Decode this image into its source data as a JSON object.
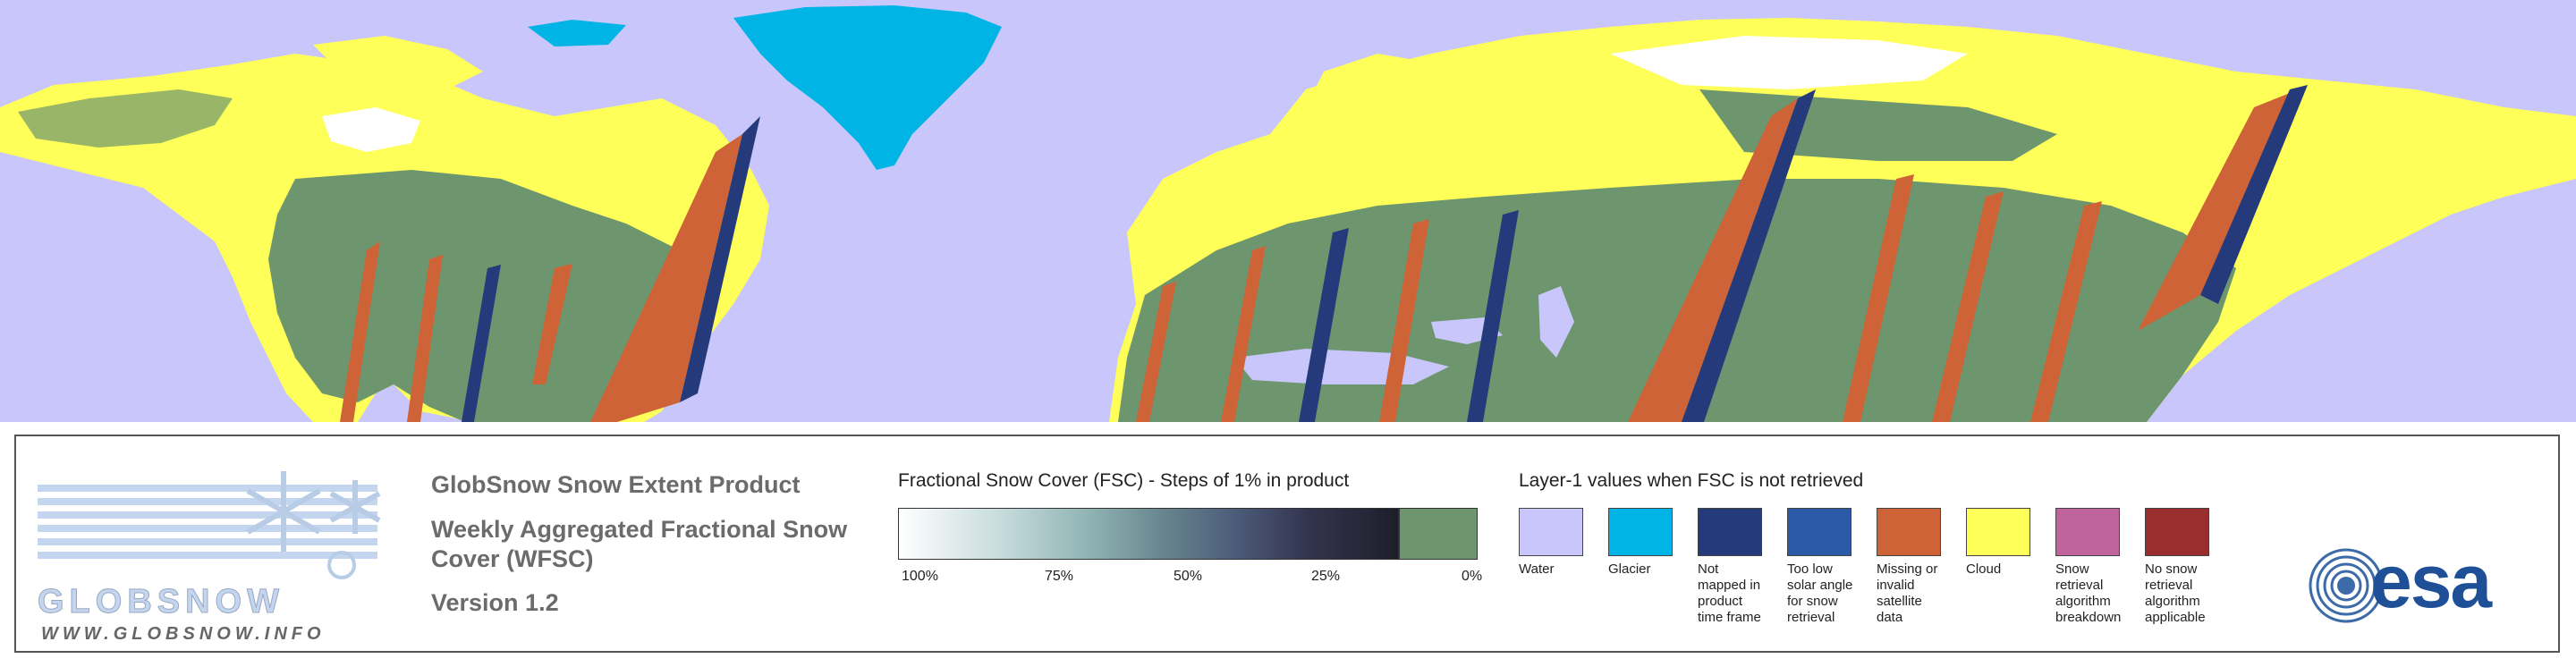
{
  "logo": {
    "wordmark_text": "GLOBSNOW",
    "url": "WWW.GLOBSNOW.INFO"
  },
  "product": {
    "title": "GlobSnow Snow Extent Product",
    "subtitle_line1": "Weekly Aggregated Fractional Snow",
    "subtitle_line2": "Cover (WFSC)",
    "version": "Version 1.2"
  },
  "fsc_legend": {
    "title": "Fractional Snow Cover (FSC) - Steps of 1% in product",
    "ticks": [
      "100%",
      "75%",
      "50%",
      "25%",
      "0%"
    ],
    "gradient_start": "#ffffff",
    "gradient_end": "#1e1e2a",
    "no_snow_color": "#6e966e"
  },
  "layer1_legend": {
    "title": "Layer-1 values when FSC is not retrieved",
    "classes": [
      {
        "label": [
          "Water"
        ],
        "color": "#c8c6fa"
      },
      {
        "label": [
          "Glacier"
        ],
        "color": "#00b4e6"
      },
      {
        "label": [
          "Not",
          "mapped in",
          "product",
          "time frame"
        ],
        "color": "#253a7a"
      },
      {
        "label": [
          "Too low",
          "solar angle",
          "for snow",
          "retrieval"
        ],
        "color": "#2b5aa8"
      },
      {
        "label": [
          "Missing or",
          "invalid satellite",
          "data"
        ],
        "color": "#cd6336"
      },
      {
        "label": [
          "Cloud"
        ],
        "color": "#ffff5a"
      },
      {
        "label": [
          "Snow retrieval",
          "algorithm",
          "breakdown"
        ],
        "color": "#c0649e"
      },
      {
        "label": [
          "No snow",
          "retrieval",
          "algorithm",
          "applicable"
        ],
        "color": "#9a2e2e"
      }
    ]
  },
  "esa_logo": {
    "text": "esa"
  },
  "map_colors": {
    "water": "#c8c6fa",
    "land_no_snow": "#6e966e",
    "cloud": "#ffff5a",
    "glacier": "#00b4e6",
    "missing": "#cd6336",
    "not_mapped": "#253a7a",
    "snow": "#ffffff"
  }
}
